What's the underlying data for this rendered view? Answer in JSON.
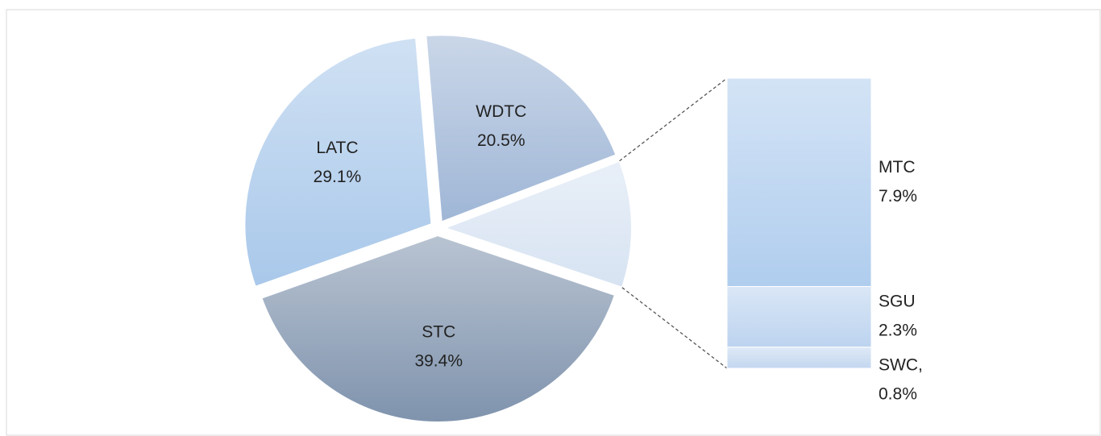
{
  "chart_data": {
    "type": "pie",
    "categories": [
      "WDTC",
      "STC",
      "LATC"
    ],
    "values": [
      20.5,
      39.4,
      29.1
    ],
    "value_labels": [
      "20.5%",
      "39.4%",
      "29.1%"
    ],
    "colors": [
      "#9fb6d6",
      "#7f93ad",
      "#a9c8ea"
    ],
    "secondary": {
      "categories": [
        "MTC",
        "SGU",
        "SWC,"
      ],
      "values": [
        7.9,
        2.3,
        0.8
      ],
      "value_labels": [
        "7.9%",
        "2.3%",
        "0.8%"
      ],
      "colors": [
        "#b0cdee",
        "#bcd3ef",
        "#c3d7ef"
      ]
    }
  }
}
